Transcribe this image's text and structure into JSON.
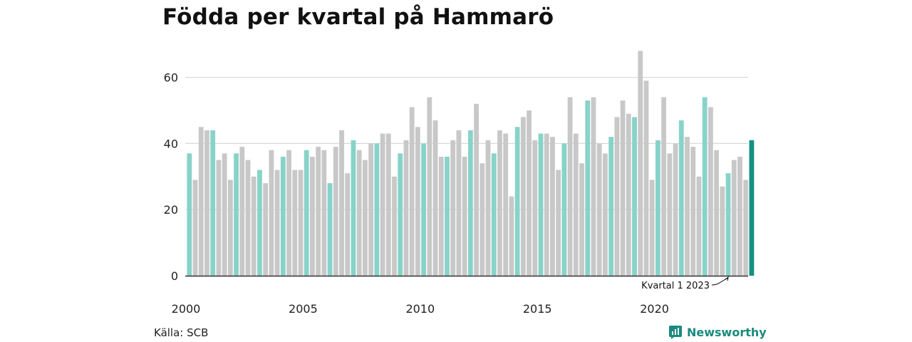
{
  "title": "Födda per kvartal på Hammarö",
  "source": "Källa: SCB",
  "brand": "Newsworthy",
  "colors": {
    "q1": "#88d3c9",
    "other": "#c8c8c8",
    "latest": "#14917f",
    "grid": "#d9d9d9",
    "axis": "#333333",
    "brand": "#1a8a7e"
  },
  "chart_data": {
    "type": "bar",
    "title": "Födda per kvartal på Hammarö",
    "xlabel": "",
    "ylabel": "",
    "ylim": [
      0,
      70
    ],
    "y_ticks": [
      0,
      20,
      40,
      60
    ],
    "x_tick_labels": [
      "2000",
      "2005",
      "2010",
      "2015",
      "2020"
    ],
    "grid": true,
    "annotation": "Kvartal 1 2023",
    "start_year": 2000,
    "values": [
      37,
      29,
      45,
      44,
      44,
      35,
      37,
      29,
      37,
      39,
      35,
      30,
      32,
      28,
      38,
      32,
      36,
      38,
      32,
      32,
      38,
      36,
      39,
      38,
      28,
      39,
      44,
      31,
      41,
      38,
      35,
      40,
      40,
      43,
      43,
      30,
      37,
      41,
      51,
      45,
      40,
      54,
      47,
      36,
      36,
      41,
      44,
      36,
      44,
      52,
      34,
      41,
      37,
      44,
      43,
      24,
      45,
      48,
      50,
      41,
      43,
      43,
      42,
      32,
      40,
      54,
      43,
      34,
      53,
      54,
      40,
      37,
      42,
      48,
      53,
      49,
      48,
      68,
      59,
      29,
      41,
      54,
      37,
      40,
      47,
      42,
      39,
      30,
      54,
      51,
      38,
      27,
      31,
      35,
      36,
      29,
      41
    ]
  }
}
